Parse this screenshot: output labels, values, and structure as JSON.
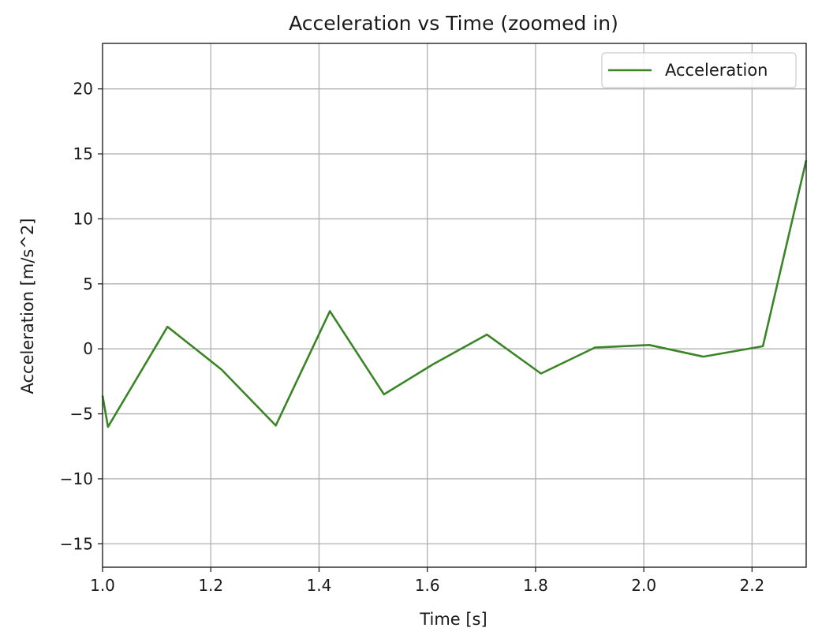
{
  "chart_data": {
    "type": "line",
    "title": "Acceleration vs Time (zoomed in)",
    "xlabel": "Time [s]",
    "ylabel": "Acceleration [m/s^2]",
    "xlim": [
      1.0,
      2.3
    ],
    "ylim": [
      -16.8,
      23.5
    ],
    "xticks": [
      1.0,
      1.2,
      1.4,
      1.6,
      1.8,
      2.0,
      2.2
    ],
    "xtick_labels": [
      "1.0",
      "1.2",
      "1.4",
      "1.6",
      "1.8",
      "2.0",
      "2.2"
    ],
    "yticks": [
      -15,
      -10,
      -5,
      0,
      5,
      10,
      15,
      20
    ],
    "ytick_labels": [
      "−15",
      "−10",
      "−5",
      "0",
      "5",
      "10",
      "15",
      "20"
    ],
    "grid": true,
    "legend": {
      "position": "top-right",
      "entries": [
        "Acceleration"
      ]
    },
    "series": [
      {
        "name": "Acceleration",
        "color": "#3a8526",
        "x": [
          1.0,
          1.01,
          1.12,
          1.22,
          1.32,
          1.42,
          1.52,
          1.61,
          1.71,
          1.81,
          1.91,
          2.01,
          2.11,
          2.22,
          2.3
        ],
        "y": [
          -3.6,
          -6.0,
          1.7,
          -1.6,
          -5.9,
          2.9,
          -3.5,
          -1.2,
          1.1,
          -1.9,
          0.1,
          0.3,
          -0.6,
          0.2,
          14.5
        ]
      }
    ]
  }
}
